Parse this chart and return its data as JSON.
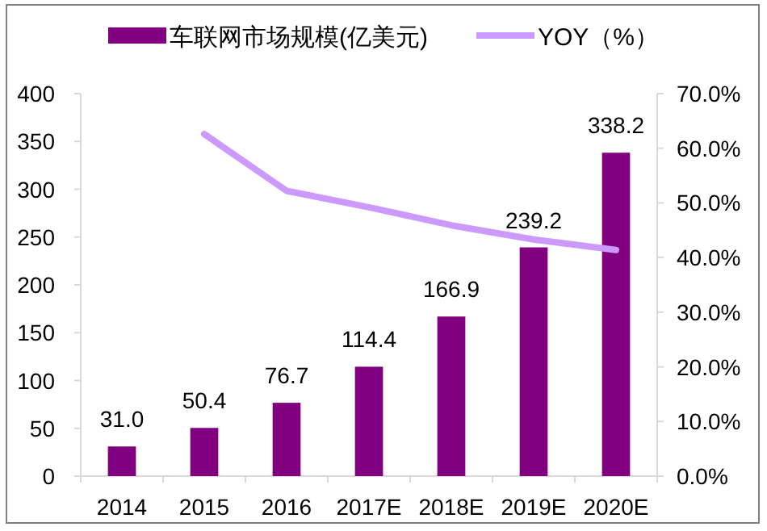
{
  "chart_data": {
    "type": "bar",
    "categories": [
      "2014",
      "2015",
      "2016",
      "2017E",
      "2018E",
      "2019E",
      "2020E"
    ],
    "series": [
      {
        "name": "车联网市场规模(亿美元)",
        "color": "#800080",
        "values": [
          31.0,
          50.4,
          76.7,
          114.4,
          166.9,
          239.2,
          338.2
        ],
        "value_labels": [
          "31.0",
          "50.4",
          "76.7",
          "114.4",
          "166.9",
          "239.2",
          "338.2"
        ]
      },
      {
        "name": "YOY（%）",
        "type": "line",
        "axis": "y2",
        "color": "#cc99ff",
        "values": [
          null,
          62.6,
          52.2,
          49.2,
          45.9,
          43.3,
          41.4
        ]
      }
    ],
    "ylim": [
      0,
      400
    ],
    "yticks": [
      0,
      50,
      100,
      150,
      200,
      250,
      300,
      350,
      400
    ],
    "y2lim": [
      0,
      70
    ],
    "y2ticks": [
      {
        "value": 0,
        "label": "0.0%"
      },
      {
        "value": 10,
        "label": "10.0%"
      },
      {
        "value": 20,
        "label": "20.0%"
      },
      {
        "value": 30,
        "label": "30.0%"
      },
      {
        "value": 40,
        "label": "40.0%"
      },
      {
        "value": 50,
        "label": "50.0%"
      },
      {
        "value": 60,
        "label": "60.0%"
      },
      {
        "value": 70,
        "label": "70.0%"
      }
    ],
    "legend": "top",
    "grid": false
  }
}
